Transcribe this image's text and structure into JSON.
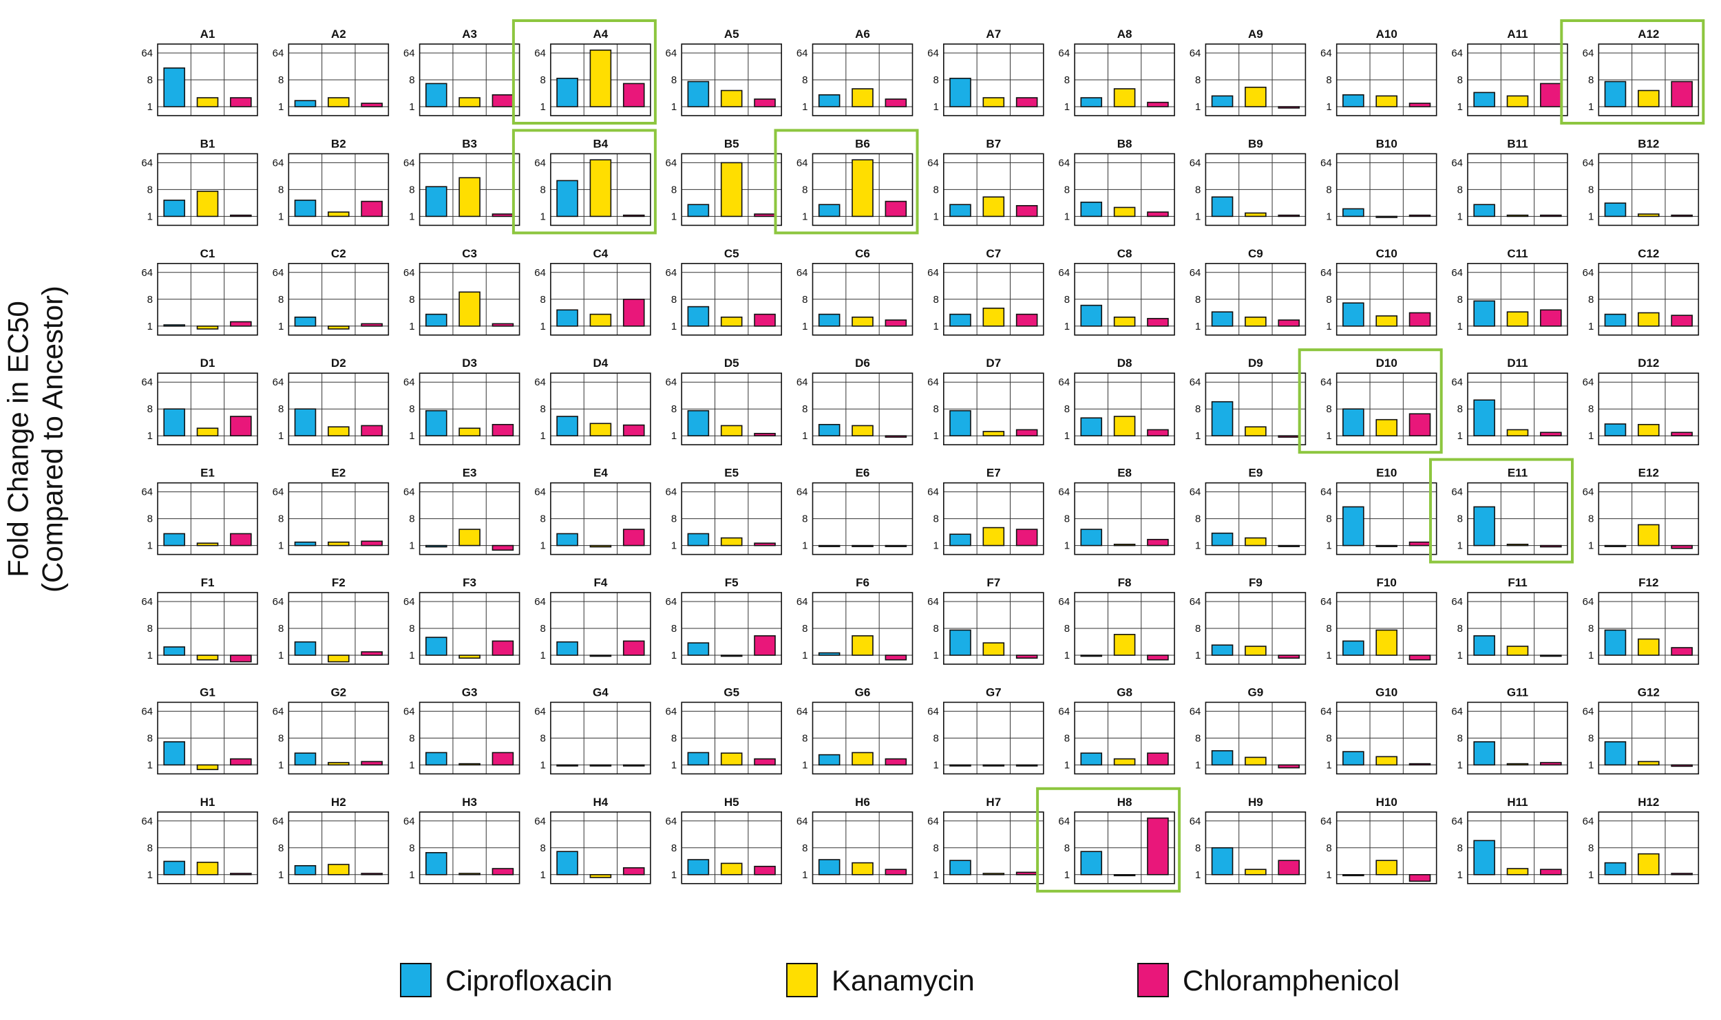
{
  "figure": {
    "ylabel_line1": "Fold Change in EC50",
    "ylabel_line2": "(Compared to Ancestor)"
  },
  "legend": [
    {
      "label": "Ciprofloxacin",
      "color": "#1aaee6"
    },
    {
      "label": "Kanamycin",
      "color": "#ffde00"
    },
    {
      "label": "Chloramphenicol",
      "color": "#e9177a"
    }
  ],
  "highlight_color": "#8dc63f",
  "chart_data": {
    "type": "bar",
    "layout": "small-multiples 8x12 plate grid",
    "series_names": [
      "Ciprofloxacin",
      "Kanamycin",
      "Chloramphenicol"
    ],
    "colors": [
      "#1aaee6",
      "#ffde00",
      "#e9177a"
    ],
    "ylabel": "Fold Change in EC50 (Compared to Ancestor)",
    "y_scale": "log2",
    "y_ticks": [
      1,
      8,
      64
    ],
    "ylim": [
      0.5,
      128
    ],
    "panels": [
      {
        "label": "A1",
        "values": [
          20,
          2,
          2
        ],
        "highlight": false
      },
      {
        "label": "A2",
        "values": [
          1.6,
          2,
          1.3
        ],
        "highlight": false
      },
      {
        "label": "A3",
        "values": [
          6,
          2,
          2.5
        ],
        "highlight": false
      },
      {
        "label": "A4",
        "values": [
          9,
          80,
          6
        ],
        "highlight": true
      },
      {
        "label": "A5",
        "values": [
          7,
          3.5,
          1.8
        ],
        "highlight": false
      },
      {
        "label": "A6",
        "values": [
          2.5,
          4,
          1.8
        ],
        "highlight": false
      },
      {
        "label": "A7",
        "values": [
          9,
          2,
          2
        ],
        "highlight": false
      },
      {
        "label": "A8",
        "values": [
          2,
          4,
          1.4
        ],
        "highlight": false
      },
      {
        "label": "A9",
        "values": [
          2.3,
          4.5,
          0.9
        ],
        "highlight": false
      },
      {
        "label": "A10",
        "values": [
          2.5,
          2.3,
          1.3
        ],
        "highlight": false
      },
      {
        "label": "A11",
        "values": [
          3,
          2.3,
          6
        ],
        "highlight": false
      },
      {
        "label": "A12",
        "values": [
          7,
          3.5,
          7
        ],
        "highlight": true
      },
      {
        "label": "B1",
        "values": [
          3.5,
          7,
          1.1
        ],
        "highlight": false
      },
      {
        "label": "B2",
        "values": [
          3.5,
          1.4,
          3.2
        ],
        "highlight": false
      },
      {
        "label": "B3",
        "values": [
          10,
          20,
          1.2
        ],
        "highlight": false
      },
      {
        "label": "B4",
        "values": [
          16,
          80,
          1.1
        ],
        "highlight": true
      },
      {
        "label": "B5",
        "values": [
          2.5,
          64,
          1.2
        ],
        "highlight": false
      },
      {
        "label": "B6",
        "values": [
          2.5,
          80,
          3.2
        ],
        "highlight": true
      },
      {
        "label": "B7",
        "values": [
          2.5,
          4.5,
          2.3
        ],
        "highlight": false
      },
      {
        "label": "B8",
        "values": [
          3,
          2,
          1.4
        ],
        "highlight": false
      },
      {
        "label": "B9",
        "values": [
          4.5,
          1.3,
          1.1
        ],
        "highlight": false
      },
      {
        "label": "B10",
        "values": [
          1.8,
          1,
          1.1
        ],
        "highlight": false
      },
      {
        "label": "B11",
        "values": [
          2.5,
          1.1,
          1.1
        ],
        "highlight": false
      },
      {
        "label": "B12",
        "values": [
          2.8,
          1.2,
          1.1
        ],
        "highlight": false
      },
      {
        "label": "C1",
        "values": [
          1.1,
          0.8,
          1.4
        ],
        "highlight": false
      },
      {
        "label": "C2",
        "values": [
          2,
          0.8,
          1.2
        ],
        "highlight": false
      },
      {
        "label": "C3",
        "values": [
          2.5,
          14,
          1.2
        ],
        "highlight": false
      },
      {
        "label": "C4",
        "values": [
          3.5,
          2.5,
          8
        ],
        "highlight": false
      },
      {
        "label": "C5",
        "values": [
          4.5,
          2,
          2.5
        ],
        "highlight": false
      },
      {
        "label": "C6",
        "values": [
          2.5,
          2,
          1.6
        ],
        "highlight": false
      },
      {
        "label": "C7",
        "values": [
          2.5,
          4,
          2.5
        ],
        "highlight": false
      },
      {
        "label": "C8",
        "values": [
          5,
          2,
          1.8
        ],
        "highlight": false
      },
      {
        "label": "C9",
        "values": [
          3,
          2,
          1.6
        ],
        "highlight": false
      },
      {
        "label": "C10",
        "values": [
          6,
          2.2,
          2.8
        ],
        "highlight": false
      },
      {
        "label": "C11",
        "values": [
          7,
          3,
          3.5
        ],
        "highlight": false
      },
      {
        "label": "C12",
        "values": [
          2.5,
          2.8,
          2.3
        ],
        "highlight": false
      },
      {
        "label": "D1",
        "values": [
          8,
          1.8,
          4.5
        ],
        "highlight": false
      },
      {
        "label": "D2",
        "values": [
          8,
          2,
          2.2
        ],
        "highlight": false
      },
      {
        "label": "D3",
        "values": [
          7,
          1.8,
          2.4
        ],
        "highlight": false
      },
      {
        "label": "D4",
        "values": [
          4.5,
          2.6,
          2.3
        ],
        "highlight": false
      },
      {
        "label": "D5",
        "values": [
          7,
          2.2,
          1.2
        ],
        "highlight": false
      },
      {
        "label": "D6",
        "values": [
          2.4,
          2.2,
          0.9
        ],
        "highlight": false
      },
      {
        "label": "D7",
        "values": [
          7,
          1.4,
          1.6
        ],
        "highlight": false
      },
      {
        "label": "D8",
        "values": [
          4,
          4.5,
          1.6
        ],
        "highlight": false
      },
      {
        "label": "D9",
        "values": [
          14,
          2,
          0.9
        ],
        "highlight": false
      },
      {
        "label": "D10",
        "values": [
          8,
          3.5,
          5.5
        ],
        "highlight": true
      },
      {
        "label": "D11",
        "values": [
          16,
          1.6,
          1.3
        ],
        "highlight": false
      },
      {
        "label": "D12",
        "values": [
          2.5,
          2.4,
          1.3
        ],
        "highlight": false
      },
      {
        "label": "E1",
        "values": [
          2.5,
          1.2,
          2.5
        ],
        "highlight": false
      },
      {
        "label": "E2",
        "values": [
          1.3,
          1.3,
          1.4
        ],
        "highlight": false
      },
      {
        "label": "E3",
        "values": [
          0.9,
          3.5,
          0.7
        ],
        "highlight": false
      },
      {
        "label": "E4",
        "values": [
          2.5,
          0.9,
          3.5
        ],
        "highlight": false
      },
      {
        "label": "E5",
        "values": [
          2.5,
          1.8,
          1.2
        ],
        "highlight": false
      },
      {
        "label": "E6",
        "values": [
          1,
          1,
          1
        ],
        "highlight": false
      },
      {
        "label": "E7",
        "values": [
          2.4,
          4,
          3.5
        ],
        "highlight": false
      },
      {
        "label": "E8",
        "values": [
          3.5,
          1.1,
          1.6
        ],
        "highlight": false
      },
      {
        "label": "E9",
        "values": [
          2.6,
          1.8,
          1
        ],
        "highlight": false
      },
      {
        "label": "E10",
        "values": [
          20,
          1,
          1.3
        ],
        "highlight": false
      },
      {
        "label": "E11",
        "values": [
          20,
          1.1,
          0.9
        ],
        "highlight": true
      },
      {
        "label": "E12",
        "values": [
          1,
          5,
          0.8
        ],
        "highlight": false
      },
      {
        "label": "F1",
        "values": [
          1.9,
          0.7,
          0.6
        ],
        "highlight": false
      },
      {
        "label": "F2",
        "values": [
          2.8,
          0.6,
          1.3
        ],
        "highlight": false
      },
      {
        "label": "F3",
        "values": [
          4,
          0.8,
          3
        ],
        "highlight": false
      },
      {
        "label": "F4",
        "values": [
          2.8,
          1,
          3
        ],
        "highlight": false
      },
      {
        "label": "F5",
        "values": [
          2.6,
          1,
          4.5
        ],
        "highlight": false
      },
      {
        "label": "F6",
        "values": [
          1.2,
          4.5,
          0.7
        ],
        "highlight": false
      },
      {
        "label": "F7",
        "values": [
          7,
          2.6,
          0.8
        ],
        "highlight": false
      },
      {
        "label": "F8",
        "values": [
          1,
          5,
          0.7
        ],
        "highlight": false
      },
      {
        "label": "F9",
        "values": [
          2.2,
          2,
          0.8
        ],
        "highlight": false
      },
      {
        "label": "F10",
        "values": [
          3,
          7,
          0.7
        ],
        "highlight": false
      },
      {
        "label": "F11",
        "values": [
          4.5,
          2,
          1
        ],
        "highlight": false
      },
      {
        "label": "F12",
        "values": [
          7,
          3.5,
          1.8
        ],
        "highlight": false
      },
      {
        "label": "G1",
        "values": [
          6,
          0.7,
          1.6
        ],
        "highlight": false
      },
      {
        "label": "G2",
        "values": [
          2.5,
          1.2,
          1.3
        ],
        "highlight": false
      },
      {
        "label": "G3",
        "values": [
          2.6,
          1.1,
          2.6
        ],
        "highlight": false
      },
      {
        "label": "G4",
        "values": [
          1,
          1,
          1
        ],
        "highlight": false
      },
      {
        "label": "G5",
        "values": [
          2.6,
          2.5,
          1.6
        ],
        "highlight": false
      },
      {
        "label": "G6",
        "values": [
          2.2,
          2.6,
          1.6
        ],
        "highlight": false
      },
      {
        "label": "G7",
        "values": [
          1,
          1,
          1
        ],
        "highlight": false
      },
      {
        "label": "G8",
        "values": [
          2.5,
          1.6,
          2.5
        ],
        "highlight": false
      },
      {
        "label": "G9",
        "values": [
          3,
          1.8,
          0.8
        ],
        "highlight": false
      },
      {
        "label": "G10",
        "values": [
          2.8,
          1.9,
          1.1
        ],
        "highlight": false
      },
      {
        "label": "G11",
        "values": [
          6,
          1.1,
          1.2
        ],
        "highlight": false
      },
      {
        "label": "G12",
        "values": [
          6,
          1.3,
          0.9
        ],
        "highlight": false
      },
      {
        "label": "H1",
        "values": [
          2.8,
          2.6,
          1.1
        ],
        "highlight": false
      },
      {
        "label": "H2",
        "values": [
          2,
          2.2,
          1.1
        ],
        "highlight": false
      },
      {
        "label": "H3",
        "values": [
          5.5,
          1.1,
          1.6
        ],
        "highlight": false
      },
      {
        "label": "H4",
        "values": [
          6,
          0.8,
          1.7
        ],
        "highlight": false
      },
      {
        "label": "H5",
        "values": [
          3.2,
          2.4,
          1.9
        ],
        "highlight": false
      },
      {
        "label": "H6",
        "values": [
          3.2,
          2.5,
          1.5
        ],
        "highlight": false
      },
      {
        "label": "H7",
        "values": [
          3,
          1.1,
          1.2
        ],
        "highlight": false
      },
      {
        "label": "H8",
        "values": [
          6,
          1,
          80
        ],
        "highlight": true
      },
      {
        "label": "H9",
        "values": [
          8,
          1.5,
          3
        ],
        "highlight": false
      },
      {
        "label": "H10",
        "values": [
          1,
          3,
          0.6
        ],
        "highlight": false
      },
      {
        "label": "H11",
        "values": [
          14,
          1.6,
          1.5
        ],
        "highlight": false
      },
      {
        "label": "H12",
        "values": [
          2.5,
          5,
          1.1
        ],
        "highlight": false
      }
    ]
  }
}
